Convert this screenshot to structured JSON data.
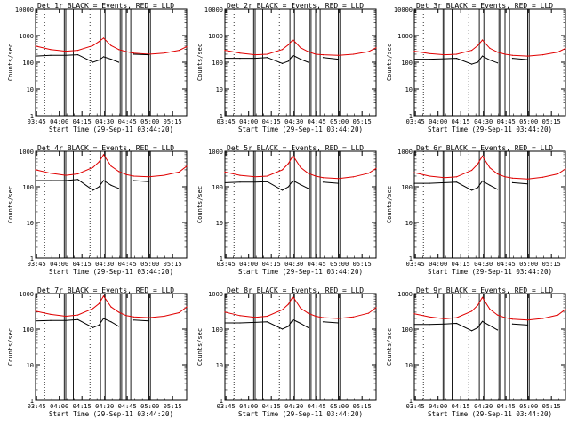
{
  "page": {
    "start_time_label": "Start Time (29-Sep-11 03:44:20)",
    "y_axis_label": "Counts/sec",
    "colors": {
      "events": "#000000",
      "lld": "#e00000",
      "frame": "#000000"
    }
  },
  "chart_data": [
    {
      "type": "line",
      "title": "Det 1r BLACK = Events, RED = LLD",
      "xlabel": "Start Time (29-Sep-11 03:44:20)",
      "ylabel": "Counts/sec",
      "yscale": "log",
      "ylim": [
        1,
        10000
      ],
      "xlim_minutes": [
        0,
        100
      ],
      "x_tick_labels": [
        "03:45",
        "04:00",
        "04:15",
        "04:30",
        "04:45",
        "05:00",
        "05:15"
      ],
      "y_tick_labels": [
        "1",
        "10",
        "100",
        "1000",
        "10000"
      ],
      "x": [
        0,
        10,
        20,
        28,
        38,
        42,
        45,
        50,
        55,
        60,
        65,
        75,
        85,
        95,
        100
      ],
      "series": [
        {
          "name": "LLD",
          "color": "red",
          "values": [
            400,
            300,
            260,
            280,
            420,
            600,
            800,
            420,
            300,
            250,
            220,
            200,
            220,
            280,
            380
          ]
        },
        {
          "name": "Events",
          "color": "black",
          "values": [
            170,
            180,
            180,
            190,
            100,
            120,
            160,
            130,
            100,
            0,
            200,
            190,
            0,
            0,
            0
          ]
        }
      ],
      "vertical_lines_solid": [
        19,
        20,
        25,
        43,
        46,
        56,
        57,
        60,
        63,
        75,
        76
      ],
      "vertical_lines_dotted": [
        6,
        36
      ]
    },
    {
      "type": "line",
      "title": "Det 2r BLACK = Events, RED = LLD",
      "xlabel": "Start Time (29-Sep-11 03:44:20)",
      "ylabel": "Counts/sec",
      "yscale": "log",
      "ylim": [
        1,
        10000
      ],
      "xlim_minutes": [
        0,
        100
      ],
      "x_tick_labels": [
        "03:45",
        "04:00",
        "04:15",
        "04:30",
        "04:45",
        "05:00",
        "05:15"
      ],
      "y_tick_labels": [
        "1",
        "10",
        "100",
        "1000",
        "10000"
      ],
      "x": [
        0,
        10,
        20,
        28,
        38,
        42,
        45,
        50,
        55,
        60,
        65,
        75,
        85,
        95,
        100
      ],
      "series": [
        {
          "name": "LLD",
          "color": "red",
          "values": [
            280,
            220,
            190,
            200,
            300,
            450,
            700,
            350,
            250,
            200,
            190,
            180,
            200,
            250,
            350
          ]
        },
        {
          "name": "Events",
          "color": "black",
          "values": [
            140,
            140,
            140,
            150,
            90,
            110,
            180,
            130,
            100,
            0,
            150,
            130,
            0,
            0,
            0
          ]
        }
      ],
      "vertical_lines_solid": [
        19,
        20,
        25,
        43,
        46,
        56,
        57,
        60,
        63,
        75,
        76
      ],
      "vertical_lines_dotted": [
        6,
        36
      ]
    },
    {
      "type": "line",
      "title": "Det 3r BLACK = Events, RED = LLD",
      "xlabel": "Start Time (29-Sep-11 03:44:20)",
      "ylabel": "Counts/sec",
      "yscale": "log",
      "ylim": [
        1,
        10000
      ],
      "xlim_minutes": [
        0,
        100
      ],
      "x_tick_labels": [
        "03:45",
        "04:00",
        "04:15",
        "04:30",
        "04:45",
        "05:00",
        "05:15"
      ],
      "y_tick_labels": [
        "1",
        "10",
        "100",
        "1000",
        "10000"
      ],
      "x": [
        0,
        10,
        20,
        28,
        38,
        42,
        45,
        50,
        55,
        60,
        65,
        75,
        85,
        95,
        100
      ],
      "series": [
        {
          "name": "LLD",
          "color": "red",
          "values": [
            260,
            210,
            190,
            200,
            280,
            420,
            680,
            330,
            240,
            200,
            180,
            170,
            190,
            240,
            330
          ]
        },
        {
          "name": "Events",
          "color": "black",
          "values": [
            130,
            130,
            135,
            140,
            85,
            100,
            170,
            120,
            95,
            0,
            140,
            125,
            0,
            0,
            0
          ]
        }
      ],
      "vertical_lines_solid": [
        19,
        20,
        25,
        43,
        46,
        56,
        57,
        60,
        63,
        75,
        76
      ],
      "vertical_lines_dotted": [
        6,
        36
      ]
    },
    {
      "type": "line",
      "title": "Det 4r BLACK = Events, RED = LLD",
      "xlabel": "Start Time (29-Sep-11 03:44:20)",
      "ylabel": "Counts/sec",
      "yscale": "log",
      "ylim": [
        1,
        1000
      ],
      "xlim_minutes": [
        0,
        100
      ],
      "x_tick_labels": [
        "03:45",
        "04:00",
        "04:15",
        "04:30",
        "04:45",
        "05:00",
        "05:15"
      ],
      "y_tick_labels": [
        "1",
        "10",
        "100",
        "1000"
      ],
      "x": [
        0,
        10,
        20,
        28,
        38,
        42,
        45,
        50,
        55,
        60,
        65,
        75,
        85,
        95,
        100
      ],
      "series": [
        {
          "name": "LLD",
          "color": "red",
          "values": [
            300,
            240,
            210,
            230,
            350,
            500,
            800,
            380,
            270,
            220,
            200,
            190,
            210,
            260,
            380
          ]
        },
        {
          "name": "Events",
          "color": "black",
          "values": [
            150,
            150,
            150,
            160,
            80,
            100,
            150,
            110,
            90,
            0,
            150,
            140,
            0,
            0,
            0
          ]
        }
      ],
      "vertical_lines_solid": [
        19,
        20,
        25,
        43,
        46,
        56,
        57,
        60,
        63,
        75,
        76
      ],
      "vertical_lines_dotted": [
        6,
        36
      ]
    },
    {
      "type": "line",
      "title": "Det 5r BLACK = Events, RED = LLD",
      "xlabel": "Start Time (29-Sep-11 03:44:20)",
      "ylabel": "Counts/sec",
      "yscale": "log",
      "ylim": [
        1,
        1000
      ],
      "xlim_minutes": [
        0,
        100
      ],
      "x_tick_labels": [
        "03:45",
        "04:00",
        "04:15",
        "04:30",
        "04:45",
        "05:00",
        "05:15"
      ],
      "y_tick_labels": [
        "1",
        "10",
        "100",
        "1000"
      ],
      "x": [
        0,
        10,
        20,
        28,
        38,
        42,
        45,
        50,
        55,
        60,
        65,
        75,
        85,
        95,
        100
      ],
      "series": [
        {
          "name": "LLD",
          "color": "red",
          "values": [
            260,
            210,
            190,
            200,
            300,
            450,
            750,
            350,
            240,
            200,
            180,
            170,
            190,
            240,
            330
          ]
        },
        {
          "name": "Events",
          "color": "black",
          "values": [
            130,
            135,
            135,
            140,
            80,
            100,
            150,
            115,
            90,
            0,
            135,
            125,
            0,
            0,
            0
          ]
        }
      ],
      "vertical_lines_solid": [
        19,
        20,
        25,
        43,
        46,
        56,
        57,
        60,
        63,
        75,
        76
      ],
      "vertical_lines_dotted": [
        6,
        36
      ]
    },
    {
      "type": "line",
      "title": "Det 6r BLACK = Events, RED = LLD",
      "xlabel": "Start Time (29-Sep-11 03:44:20)",
      "ylabel": "Counts/sec",
      "yscale": "log",
      "ylim": [
        1,
        1000
      ],
      "xlim_minutes": [
        0,
        100
      ],
      "x_tick_labels": [
        "03:45",
        "04:00",
        "04:15",
        "04:30",
        "04:45",
        "05:00",
        "05:15"
      ],
      "y_tick_labels": [
        "1",
        "10",
        "100",
        "1000"
      ],
      "x": [
        0,
        10,
        20,
        28,
        38,
        42,
        45,
        50,
        55,
        60,
        65,
        75,
        85,
        95,
        100
      ],
      "series": [
        {
          "name": "LLD",
          "color": "red",
          "values": [
            250,
            200,
            180,
            190,
            290,
            440,
            730,
            340,
            230,
            190,
            175,
            165,
            185,
            230,
            320
          ]
        },
        {
          "name": "Events",
          "color": "black",
          "values": [
            125,
            125,
            130,
            135,
            80,
            95,
            145,
            110,
            85,
            0,
            130,
            120,
            0,
            0,
            0
          ]
        }
      ],
      "vertical_lines_solid": [
        19,
        20,
        25,
        43,
        46,
        56,
        57,
        60,
        63,
        75,
        76
      ],
      "vertical_lines_dotted": [
        6,
        36
      ]
    },
    {
      "type": "line",
      "title": "Det 7r BLACK = Events, RED = LLD",
      "xlabel": "Start Time (29-Sep-11 03:44:20)",
      "ylabel": "Counts/sec",
      "yscale": "log",
      "ylim": [
        1,
        1000
      ],
      "xlim_minutes": [
        0,
        100
      ],
      "x_tick_labels": [
        "03:45",
        "04:00",
        "04:15",
        "04:30",
        "04:45",
        "05:00",
        "05:15"
      ],
      "y_tick_labels": [
        "1",
        "10",
        "100",
        "1000"
      ],
      "x": [
        0,
        10,
        20,
        28,
        38,
        42,
        45,
        50,
        55,
        60,
        65,
        75,
        85,
        95,
        100
      ],
      "series": [
        {
          "name": "LLD",
          "color": "red",
          "values": [
            320,
            260,
            230,
            250,
            380,
            520,
            850,
            420,
            300,
            240,
            220,
            210,
            230,
            290,
            420
          ]
        },
        {
          "name": "Events",
          "color": "black",
          "values": [
            170,
            175,
            175,
            185,
            110,
            130,
            200,
            160,
            120,
            0,
            180,
            170,
            0,
            0,
            0
          ]
        }
      ],
      "vertical_lines_solid": [
        19,
        20,
        25,
        43,
        46,
        56,
        57,
        60,
        63,
        75,
        76
      ],
      "vertical_lines_dotted": [
        6,
        36
      ]
    },
    {
      "type": "line",
      "title": "Det 8r BLACK = Events, RED = LLD",
      "xlabel": "Start Time (29-Sep-11 03:44:20)",
      "ylabel": "Counts/sec",
      "yscale": "log",
      "ylim": [
        1,
        1000
      ],
      "xlim_minutes": [
        0,
        100
      ],
      "x_tick_labels": [
        "03:45",
        "04:00",
        "04:15",
        "04:30",
        "04:45",
        "05:00",
        "05:15"
      ],
      "y_tick_labels": [
        "1",
        "10",
        "100",
        "1000"
      ],
      "x": [
        0,
        10,
        20,
        28,
        38,
        42,
        45,
        50,
        55,
        60,
        65,
        75,
        85,
        95,
        100
      ],
      "series": [
        {
          "name": "LLD",
          "color": "red",
          "values": [
            300,
            240,
            215,
            230,
            350,
            500,
            820,
            390,
            280,
            230,
            210,
            200,
            220,
            280,
            400
          ]
        },
        {
          "name": "Events",
          "color": "black",
          "values": [
            150,
            150,
            155,
            160,
            100,
            120,
            185,
            145,
            110,
            0,
            160,
            150,
            0,
            0,
            0
          ]
        }
      ],
      "vertical_lines_solid": [
        19,
        20,
        25,
        43,
        46,
        56,
        57,
        60,
        63,
        75,
        76
      ],
      "vertical_lines_dotted": [
        6,
        36
      ]
    },
    {
      "type": "line",
      "title": "Det 9r BLACK = Events, RED = LLD",
      "xlabel": "Start Time (29-Sep-11 03:44:20)",
      "ylabel": "Counts/sec",
      "yscale": "log",
      "ylim": [
        1,
        1000
      ],
      "xlim_minutes": [
        0,
        100
      ],
      "x_tick_labels": [
        "03:45",
        "04:00",
        "04:15",
        "04:30",
        "04:45",
        "05:00",
        "05:15"
      ],
      "y_tick_labels": [
        "1",
        "10",
        "100",
        "1000"
      ],
      "x": [
        0,
        10,
        20,
        28,
        38,
        42,
        45,
        50,
        55,
        60,
        65,
        75,
        85,
        95,
        100
      ],
      "series": [
        {
          "name": "LLD",
          "color": "red",
          "values": [
            270,
            220,
            195,
            210,
            320,
            470,
            780,
            360,
            250,
            210,
            190,
            180,
            200,
            250,
            360
          ]
        },
        {
          "name": "Events",
          "color": "black",
          "values": [
            135,
            135,
            140,
            145,
            90,
            110,
            165,
            125,
            95,
            0,
            140,
            130,
            0,
            0,
            0
          ]
        }
      ],
      "vertical_lines_solid": [
        19,
        20,
        25,
        43,
        46,
        56,
        57,
        60,
        63,
        75,
        76
      ],
      "vertical_lines_dotted": [
        6,
        36
      ]
    }
  ]
}
